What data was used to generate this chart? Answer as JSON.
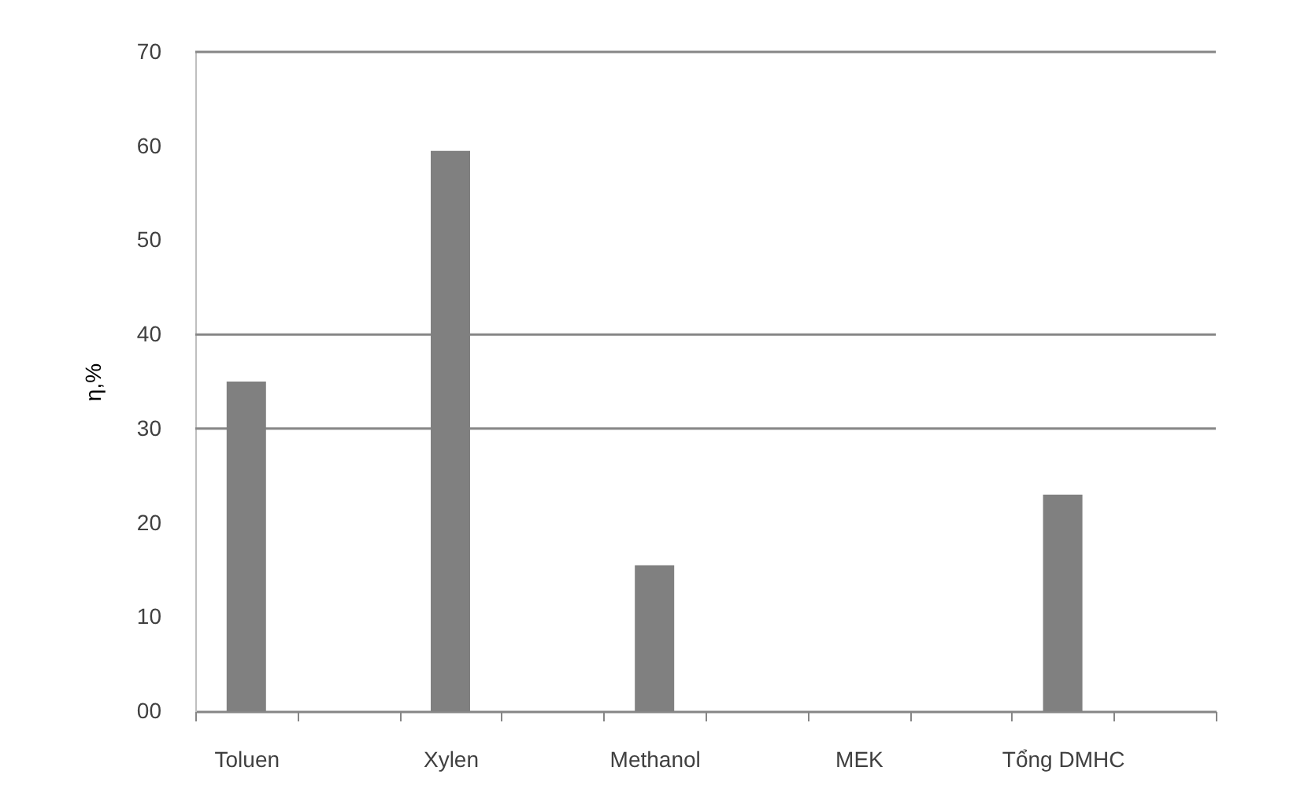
{
  "chart_data": {
    "type": "bar",
    "ylabel": "η,%",
    "categories": [
      "Toluen",
      null,
      "Xylen",
      null,
      "Methanol",
      null,
      "MEK",
      null,
      "Tổng DMHC",
      null
    ],
    "values": [
      35,
      null,
      59.5,
      null,
      15.5,
      null,
      null,
      null,
      23,
      null
    ],
    "color": "#808080",
    "ylim": [
      0,
      70
    ],
    "yticks": [
      {
        "value": 0,
        "label": "00"
      },
      10,
      20,
      30,
      40,
      50,
      60,
      70
    ],
    "ref_lines": [
      {
        "axis": "y",
        "value": 30,
        "color": "#868686"
      },
      {
        "axis": "y",
        "value": 40,
        "color": "#868686"
      }
    ]
  }
}
